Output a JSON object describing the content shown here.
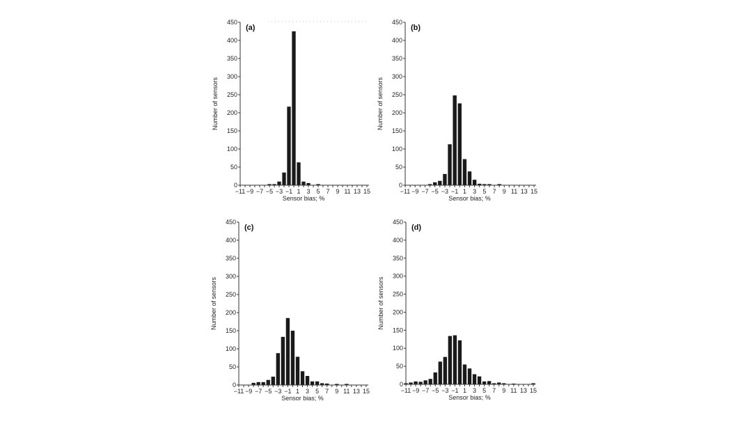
{
  "chart_data": [
    {
      "type": "bar",
      "panel_label": "(a)",
      "xlabel": "Sensor bias; %",
      "ylabel": "Number of sensors",
      "xlim": [
        -11,
        15
      ],
      "ylim": [
        0,
        450
      ],
      "x_tick_labels": [
        "−11",
        "−9",
        "−7",
        "−5",
        "−3",
        "−1",
        "1",
        "3",
        "5",
        "7",
        "9",
        "11",
        "13",
        "15"
      ],
      "y_tick_labels": [
        "0",
        "50",
        "100",
        "150",
        "200",
        "250",
        "300",
        "350",
        "400",
        "450"
      ],
      "x": [
        -5,
        -4,
        -3,
        -2,
        -1,
        0,
        1,
        2,
        3,
        5
      ],
      "values": [
        3,
        3,
        10,
        35,
        217,
        425,
        63,
        10,
        6,
        3
      ],
      "bar_color": "#1a1a1a"
    },
    {
      "type": "bar",
      "panel_label": "(b)",
      "xlabel": "Sensor bias; %",
      "ylabel": "Number of sensors",
      "xlim": [
        -11,
        15
      ],
      "ylim": [
        0,
        450
      ],
      "x_tick_labels": [
        "−11",
        "−9",
        "−7",
        "−5",
        "−3",
        "−1",
        "1",
        "3",
        "5",
        "7",
        "9",
        "11",
        "13",
        "15"
      ],
      "y_tick_labels": [
        "0",
        "50",
        "100",
        "150",
        "200",
        "250",
        "300",
        "350",
        "400",
        "450"
      ],
      "x": [
        -6,
        -5,
        -4,
        -3,
        -2,
        -1,
        0,
        1,
        2,
        3,
        4,
        5,
        6,
        8
      ],
      "values": [
        3,
        8,
        12,
        31,
        113,
        248,
        226,
        72,
        38,
        15,
        4,
        3,
        3,
        3
      ],
      "bar_color": "#1a1a1a"
    },
    {
      "type": "bar",
      "panel_label": "(c)",
      "xlabel": "Sensor bias; %",
      "ylabel": "Number of sensors",
      "xlim": [
        -11,
        15
      ],
      "ylim": [
        0,
        450
      ],
      "x_tick_labels": [
        "−11",
        "−9",
        "−7",
        "−5",
        "−3",
        "−1",
        "1",
        "3",
        "5",
        "7",
        "9",
        "11",
        "13",
        "15"
      ],
      "y_tick_labels": [
        "0",
        "50",
        "100",
        "150",
        "200",
        "250",
        "300",
        "350",
        "400",
        "450"
      ],
      "x": [
        -8,
        -7,
        -6,
        -5,
        -4,
        -3,
        -2,
        -1,
        0,
        1,
        2,
        3,
        4,
        5,
        6,
        7,
        9,
        11
      ],
      "values": [
        6,
        8,
        8,
        14,
        23,
        88,
        133,
        185,
        150,
        78,
        38,
        25,
        10,
        10,
        5,
        4,
        3,
        3
      ],
      "bar_color": "#1a1a1a"
    },
    {
      "type": "bar",
      "panel_label": "(d)",
      "xlabel": "Sensor bias; %",
      "ylabel": "Number of sensors",
      "xlim": [
        -11,
        15
      ],
      "ylim": [
        0,
        450
      ],
      "x_tick_labels": [
        "−11",
        "−9",
        "−7",
        "−5",
        "−3",
        "−1",
        "1",
        "3",
        "5",
        "7",
        "9",
        "11",
        "13",
        "15"
      ],
      "y_tick_labels": [
        "0",
        "50",
        "100",
        "150",
        "200",
        "250",
        "300",
        "350",
        "400",
        "450"
      ],
      "x": [
        -11,
        -10,
        -9,
        -8,
        -7,
        -6,
        -5,
        -4,
        -3,
        -2,
        -1,
        0,
        1,
        2,
        3,
        4,
        5,
        6,
        7,
        8,
        9,
        10,
        11,
        12,
        13,
        14,
        15
      ],
      "values": [
        3,
        5,
        8,
        7,
        11,
        15,
        33,
        63,
        76,
        134,
        136,
        122,
        55,
        44,
        28,
        22,
        8,
        9,
        3,
        5,
        3,
        1,
        2,
        1,
        1,
        1,
        3
      ],
      "bar_color": "#1a1a1a"
    }
  ]
}
